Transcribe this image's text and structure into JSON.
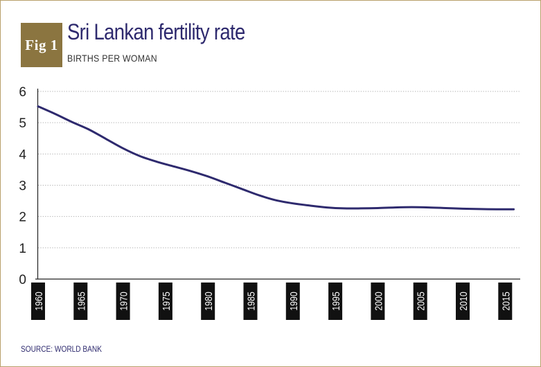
{
  "figure": {
    "badge": "Fig 1",
    "title": "Sri Lankan fertility rate",
    "subtitle": "BIRTHS PER WOMAN",
    "source": "SOURCE: WORLD BANK"
  },
  "colors": {
    "line": "#2e2a6e",
    "badge": "#8b7540",
    "tick_label_bg": "#111111",
    "grid": "#aaaaaa",
    "border": "#b8a06a"
  },
  "chart_data": {
    "type": "line",
    "title": "Sri Lankan fertility rate",
    "subtitle": "BIRTHS PER WOMAN",
    "xlabel": "",
    "ylabel": "",
    "x": [
      1960,
      1962,
      1964,
      1966,
      1968,
      1970,
      1972,
      1974,
      1976,
      1978,
      1980,
      1982,
      1984,
      1986,
      1988,
      1990,
      1992,
      1994,
      1996,
      1998,
      2000,
      2002,
      2004,
      2006,
      2008,
      2010,
      2012,
      2014,
      2016
    ],
    "series": [
      {
        "values": [
          5.52,
          5.28,
          5.02,
          4.78,
          4.48,
          4.18,
          3.93,
          3.75,
          3.6,
          3.45,
          3.28,
          3.08,
          2.88,
          2.68,
          2.52,
          2.42,
          2.35,
          2.29,
          2.26,
          2.26,
          2.27,
          2.29,
          2.3,
          2.29,
          2.27,
          2.25,
          2.24,
          2.23,
          2.23
        ]
      }
    ],
    "x_ticks": [
      "1960",
      "1965",
      "1970",
      "1975",
      "1980",
      "1985",
      "1990",
      "1995",
      "2000",
      "2005",
      "2010",
      "2015"
    ],
    "y_ticks": [
      "0",
      "1",
      "2",
      "3",
      "4",
      "5",
      "6"
    ],
    "xlim": [
      1960,
      2016
    ],
    "ylim": [
      0,
      6
    ],
    "grid": "horizontal dotted"
  }
}
